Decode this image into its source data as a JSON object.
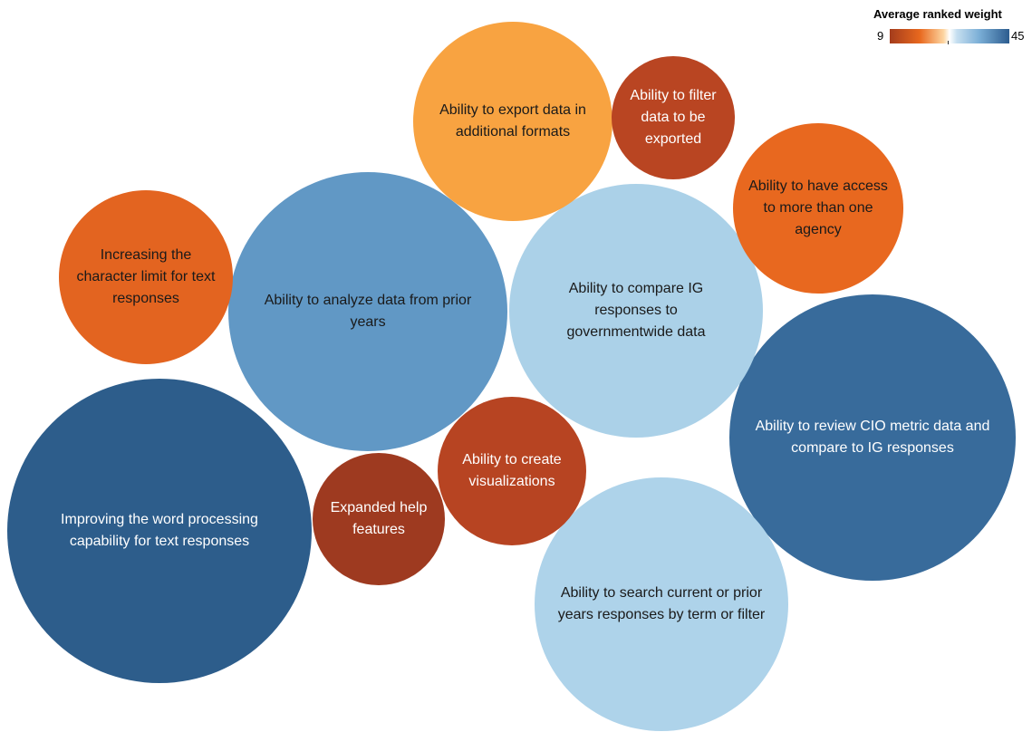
{
  "chart_data": {
    "type": "bubble",
    "title": "",
    "size_and_color_measure": "Average ranked weight",
    "legend": {
      "title": "Average ranked weight",
      "min": 9,
      "max": 45,
      "placement": "top-right"
    },
    "bubbles": [
      {
        "label": "Improving the word processing capability for text responses",
        "value": 45,
        "color": "#2d5d8b",
        "text_color": "#ffffff"
      },
      {
        "label": "Ability to review CIO metric data and compare to IG responses",
        "value": 43,
        "color": "#386b9b",
        "text_color": "#ffffff"
      },
      {
        "label": "Ability to compare IG responses to governmentwide data",
        "value": 36,
        "color": "#abd1e8",
        "text_color": "#1a1a1a"
      },
      {
        "label": "Ability to search current or prior years responses by term or filter",
        "value": 33,
        "color": "#aed3ea",
        "text_color": "#1a1a1a"
      },
      {
        "label": "Ability to analyze data from prior years",
        "value": 39,
        "color": "#6198c5",
        "text_color": "#1a1a1a"
      },
      {
        "label": "Ability to export data in additional formats",
        "value": 20,
        "color": "#f8a341",
        "text_color": "#1a1a1a"
      },
      {
        "label": "Ability to have access to more than one agency",
        "value": 16,
        "color": "#e8681f",
        "text_color": "#1a1a1a"
      },
      {
        "label": "Increasing the character limit for text responses",
        "value": 15,
        "color": "#e36420",
        "text_color": "#1a1a1a"
      },
      {
        "label": "Ability to filter data to be exported",
        "value": 11,
        "color": "#b94522",
        "text_color": "#ffffff"
      },
      {
        "label": "Ability to create visualizations",
        "value": 12,
        "color": "#b74422",
        "text_color": "#ffffff"
      },
      {
        "label": "Expanded help features",
        "value": 10,
        "color": "#9e3a20",
        "text_color": "#ffffff"
      }
    ]
  }
}
